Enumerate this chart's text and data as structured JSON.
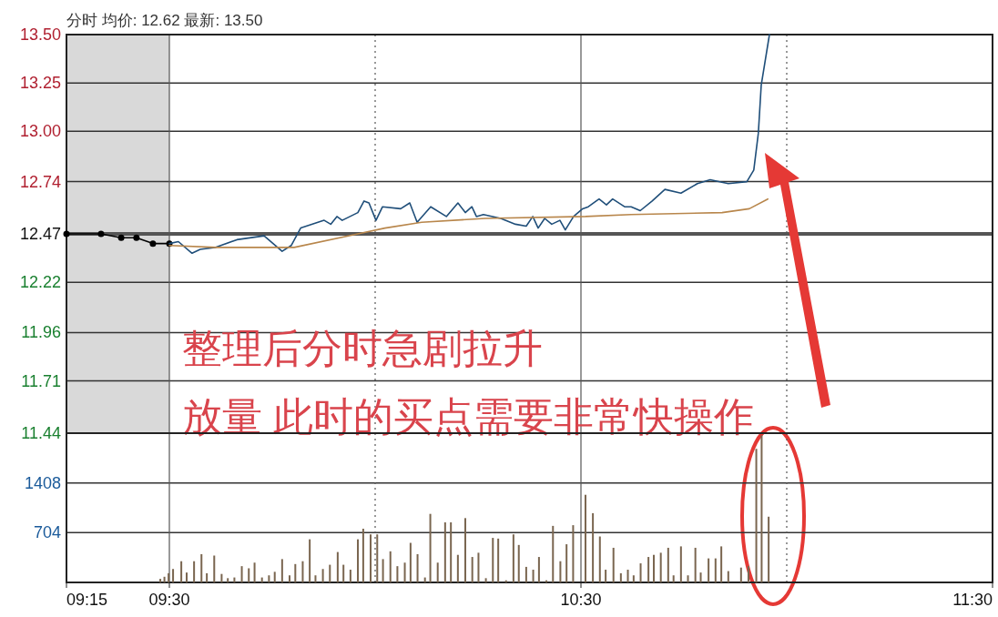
{
  "chart_data": [
    {
      "type": "line",
      "title": "分时 均价: 12.62 最新: 13.50",
      "annotations": [
        "整理后分时急剧拉升",
        "放量  此时的买点需要非常快操作"
      ],
      "xlim": [
        9.25,
        11.5
      ],
      "xticks": [
        {
          "value": 9.5,
          "label": null
        },
        {
          "value": 10.5,
          "label": null
        }
      ],
      "ylim": [
        11.44,
        13.5
      ],
      "yticks": [
        11.44,
        11.71,
        11.96,
        12.22,
        12.47,
        12.74,
        {
          "value": 13,
          "label": "13.00"
        },
        13.25,
        {
          "value": 13.5,
          "label": "13.50"
        }
      ],
      "tick_labels": "y",
      "grid": true,
      "ref_lines": [
        {
          "axis": "y",
          "value": 12.47,
          "color": "#555555"
        },
        {
          "axis": "x",
          "value": 10,
          "color": "#555555",
          "line_style": "dotted"
        },
        {
          "axis": "x",
          "value": 11,
          "color": "#555555",
          "line_style": "dotted"
        }
      ],
      "bands": [
        {
          "axis": "x",
          "from": 9.25,
          "to": 9.5,
          "color": "#d9d9d9"
        }
      ],
      "series": [
        {
          "color": "#000000",
          "marker": "circle",
          "x": [
            9.25,
            9.334,
            9.383,
            9.42,
            9.46,
            9.5
          ],
          "values": [
            12.47,
            12.47,
            12.45,
            12.45,
            12.42,
            12.42
          ]
        },
        {
          "color": "#1f4e79",
          "x": [
            9.5,
            9.522,
            9.555,
            9.575,
            9.611,
            9.664,
            9.73,
            9.774,
            9.796,
            9.819,
            9.876,
            9.892,
            9.907,
            9.92,
            9.958,
            9.973,
            9.985,
            10.002,
            10.018,
            10.062,
            10.084,
            10.102,
            10.135,
            10.173,
            10.201,
            10.219,
            10.235,
            10.246,
            10.263,
            10.305,
            10.341,
            10.367,
            10.383,
            10.396,
            10.412,
            10.429,
            10.449,
            10.462,
            10.482,
            10.504,
            10.518,
            10.544,
            10.562,
            10.577,
            10.606,
            10.622,
            10.644,
            10.673,
            10.704,
            10.743,
            10.783,
            10.814,
            10.858,
            10.903,
            10.92,
            10.931,
            10.938,
            10.958
          ],
          "values": [
            12.42,
            12.43,
            12.37,
            12.39,
            12.4,
            12.44,
            12.46,
            12.38,
            12.41,
            12.5,
            12.54,
            12.52,
            12.56,
            12.54,
            12.58,
            12.64,
            12.63,
            12.54,
            12.61,
            12.6,
            12.63,
            12.53,
            12.61,
            12.56,
            12.63,
            12.58,
            12.61,
            12.56,
            12.57,
            12.55,
            12.52,
            12.51,
            12.56,
            12.5,
            12.55,
            12.52,
            12.54,
            12.49,
            12.56,
            12.6,
            12.61,
            12.65,
            12.62,
            12.65,
            12.61,
            12.61,
            12.59,
            12.64,
            12.7,
            12.68,
            12.73,
            12.75,
            12.73,
            12.74,
            12.8,
            12.99,
            13.24,
            13.5
          ]
        },
        {
          "color": "#b8864b",
          "x": [
            9.5,
            9.615,
            9.803,
            9.958,
            10.024,
            10.113,
            10.268,
            10.511,
            10.622,
            10.843,
            10.909,
            10.954
          ],
          "values": [
            12.41,
            12.4,
            12.4,
            12.47,
            12.5,
            12.53,
            12.55,
            12.56,
            12.57,
            12.58,
            12.6,
            12.65
          ]
        }
      ]
    },
    {
      "type": "bar",
      "color": "#7a6650",
      "xlim": [
        9.25,
        11.5
      ],
      "xticks": [
        {
          "value": 9.25,
          "label": "09:15"
        },
        {
          "value": 9.5,
          "label": "09:30"
        },
        {
          "value": 10.5,
          "label": "10:30"
        },
        {
          "value": 11.5,
          "label": "11:30"
        }
      ],
      "ylim": [
        0,
        2112
      ],
      "yticks": [
        704,
        1408
      ],
      "grid": true,
      "ref_lines": [
        {
          "axis": "x",
          "value": 10,
          "color": "#555555",
          "line_style": "dotted"
        },
        {
          "axis": "x",
          "value": 11,
          "color": "#555555",
          "line_style": "dotted"
        }
      ],
      "x": [
        9.478,
        9.488,
        9.498,
        9.509,
        9.529,
        9.542,
        9.56,
        9.578,
        9.591,
        9.609,
        9.627,
        9.642,
        9.658,
        9.676,
        9.693,
        9.707,
        9.725,
        9.742,
        9.756,
        9.774,
        9.792,
        9.806,
        9.824,
        9.841,
        9.855,
        9.873,
        9.89,
        9.909,
        9.923,
        9.94,
        9.958,
        9.971,
        9.989,
        10.005,
        10.019,
        10.037,
        10.054,
        10.072,
        10.086,
        10.103,
        10.121,
        10.134,
        10.152,
        10.17,
        10.184,
        10.201,
        10.219,
        10.236,
        10.251,
        10.269,
        10.286,
        10.299,
        10.318,
        10.336,
        10.349,
        10.367,
        10.384,
        10.398,
        10.416,
        10.432,
        10.45,
        10.465,
        10.481,
        10.511,
        10.529,
        10.546,
        10.56,
        10.579,
        10.597,
        10.614,
        10.628,
        10.645,
        10.664,
        10.677,
        10.694,
        10.712,
        10.725,
        10.743,
        10.76,
        10.778,
        10.791,
        10.81,
        10.827,
        10.841,
        10.858,
        10.889,
        10.907,
        10.926,
        10.939,
        10.956
      ],
      "values": [
        50,
        80,
        130,
        190,
        300,
        140,
        300,
        400,
        130,
        380,
        120,
        60,
        70,
        230,
        200,
        280,
        70,
        100,
        150,
        330,
        100,
        260,
        300,
        610,
        100,
        190,
        250,
        430,
        250,
        180,
        610,
        760,
        680,
        680,
        330,
        440,
        230,
        280,
        560,
        400,
        70,
        970,
        280,
        850,
        850,
        390,
        910,
        360,
        420,
        60,
        630,
        620,
        30,
        680,
        530,
        220,
        180,
        360,
        30,
        800,
        300,
        540,
        810,
        1240,
        980,
        650,
        180,
        490,
        130,
        180,
        100,
        270,
        360,
        390,
        420,
        490,
        100,
        510,
        100,
        490,
        140,
        340,
        340,
        510,
        160,
        210,
        230,
        1890,
        2080,
        930
      ]
    }
  ]
}
